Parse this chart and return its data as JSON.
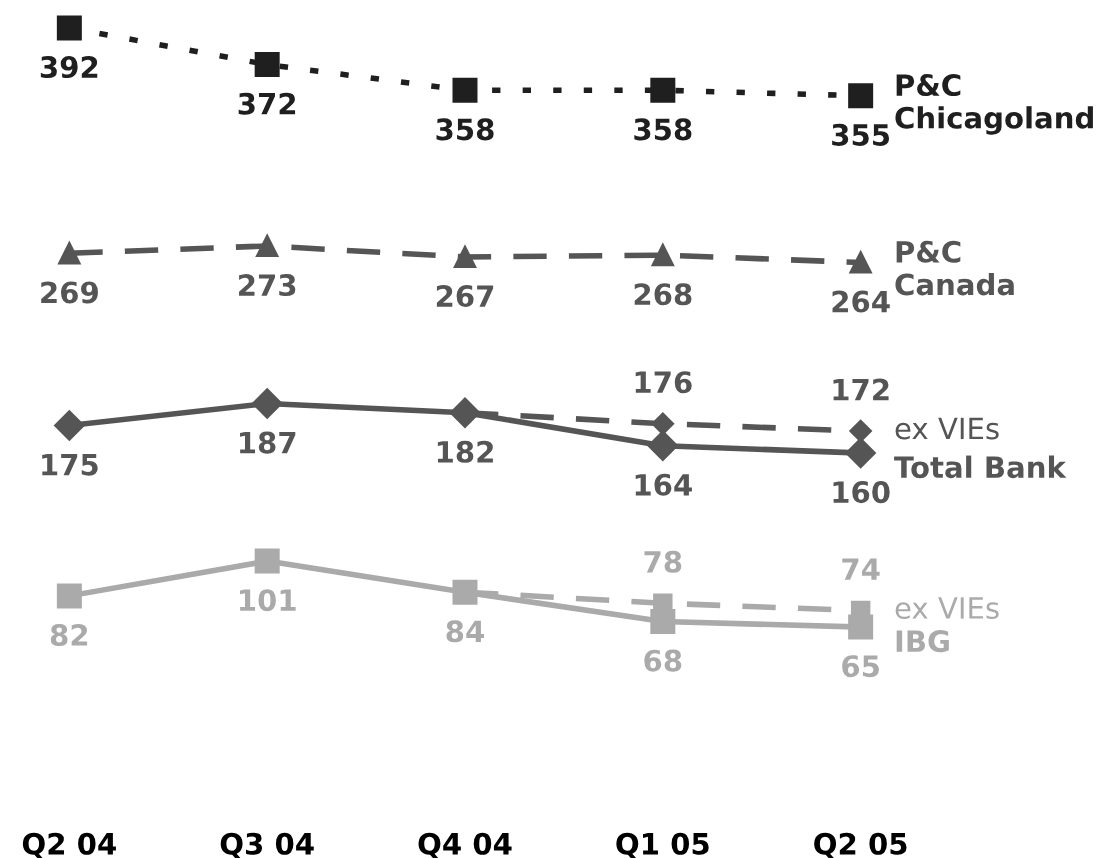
{
  "chart_data": {
    "type": "line",
    "categories": [
      "Q2 04",
      "Q3 04",
      "Q4 04",
      "Q1 05",
      "Q2 05"
    ],
    "tick_labels": "x",
    "grid": false,
    "legend": false,
    "series": [
      {
        "name": "P&C\nChicagoland",
        "color": "#1f1f1f",
        "marker": "square",
        "line_style": "dotted",
        "values": [
          392,
          372,
          358,
          358,
          355
        ],
        "value_labels": [
          "392",
          "372",
          "358",
          "358",
          "355"
        ]
      },
      {
        "name": "P&C\nCanada",
        "color": "#555555",
        "marker": "triangle",
        "line_style": "dashed",
        "values": [
          269,
          273,
          267,
          268,
          264
        ],
        "value_labels": [
          "269",
          "273",
          "267",
          "268",
          "264"
        ]
      },
      {
        "name": "ex VIEs",
        "color": "#555555",
        "marker": "diamond",
        "line_style": "dashed",
        "values": [
          null,
          null,
          182,
          176,
          172
        ],
        "value_labels": [
          null,
          null,
          null,
          "176",
          "172"
        ]
      },
      {
        "name": "Total Bank",
        "color": "#555555",
        "marker": "diamond",
        "line_style": "solid",
        "values": [
          175,
          187,
          182,
          164,
          160
        ],
        "value_labels": [
          "175",
          "187",
          "182",
          "164",
          "160"
        ]
      },
      {
        "name": "ex VIEs",
        "color": "#aaaaaa",
        "marker": "square",
        "line_style": "dashed",
        "values": [
          null,
          null,
          84,
          78,
          74
        ],
        "value_labels": [
          null,
          null,
          null,
          "78",
          "74"
        ]
      },
      {
        "name": "IBG",
        "color": "#aaaaaa",
        "marker": "square",
        "line_style": "solid",
        "values": [
          82,
          101,
          84,
          68,
          65
        ],
        "value_labels": [
          "82",
          "101",
          "84",
          "68",
          "65"
        ]
      }
    ]
  }
}
